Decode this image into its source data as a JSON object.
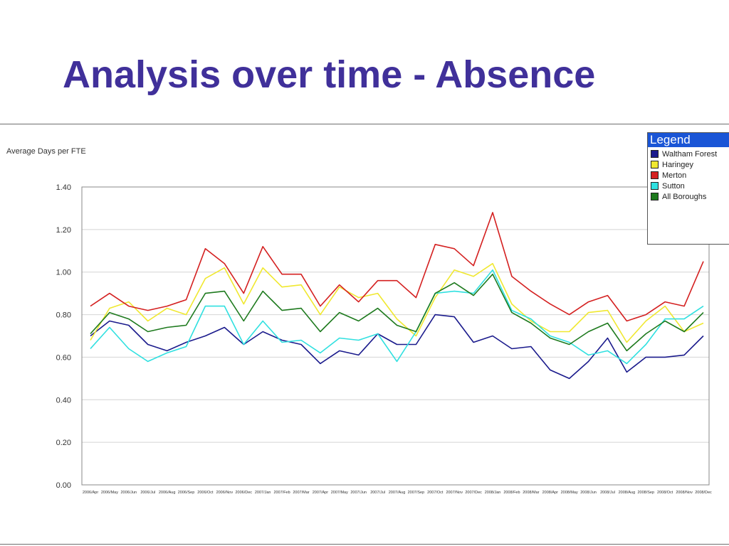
{
  "slide": {
    "title": "Analysis over time - Absence"
  },
  "legend": {
    "title": "Legend"
  },
  "chart_data": {
    "type": "line",
    "title": "",
    "ylabel": "Average Days per FTE",
    "xlabel": "",
    "ylim": [
      0,
      1.4
    ],
    "yticks": [
      "0.00",
      "0.20",
      "0.40",
      "0.60",
      "0.80",
      "1.00",
      "1.20",
      "1.40"
    ],
    "grid": true,
    "legend_placement": "top-right",
    "categories": [
      "2006/Apr",
      "2006/May",
      "2006/Jun",
      "2006/Jul",
      "2006/Aug",
      "2006/Sep",
      "2006/Oct",
      "2006/Nov",
      "2006/Dec",
      "2007/Jan",
      "2007/Feb",
      "2007/Mar",
      "2007/Apr",
      "2007/May",
      "2007/Jun",
      "2007/Jul",
      "2007/Aug",
      "2007/Sep",
      "2007/Oct",
      "2007/Nov",
      "2007/Dec",
      "2008/Jan",
      "2008/Feb",
      "2008/Mar",
      "2008/Apr",
      "2008/May",
      "2008/Jun",
      "2008/Jul",
      "2008/Aug",
      "2008/Sep",
      "2008/Oct",
      "2008/Nov",
      "2008/Dec"
    ],
    "series": [
      {
        "name": "Waltham Forest",
        "color": "#1a1a8c",
        "values": [
          0.7,
          0.77,
          0.75,
          0.66,
          0.63,
          0.67,
          0.7,
          0.74,
          0.66,
          0.72,
          0.68,
          0.66,
          0.57,
          0.63,
          0.61,
          0.71,
          0.66,
          0.66,
          0.8,
          0.79,
          0.67,
          0.7,
          0.64,
          0.65,
          0.54,
          0.5,
          0.58,
          0.69,
          0.53,
          0.6,
          0.6,
          0.61,
          0.7
        ]
      },
      {
        "name": "Haringey",
        "color": "#f0e830",
        "values": [
          0.68,
          0.83,
          0.86,
          0.77,
          0.83,
          0.8,
          0.97,
          1.02,
          0.85,
          1.02,
          0.93,
          0.94,
          0.8,
          0.93,
          0.88,
          0.9,
          0.78,
          0.7,
          0.88,
          1.01,
          0.98,
          1.04,
          0.85,
          0.77,
          0.72,
          0.72,
          0.81,
          0.82,
          0.67,
          0.77,
          0.84,
          0.72,
          0.76
        ]
      },
      {
        "name": "Merton",
        "color": "#d42020",
        "values": [
          0.84,
          0.9,
          0.84,
          0.82,
          0.84,
          0.87,
          1.11,
          1.04,
          0.9,
          1.12,
          0.99,
          0.99,
          0.84,
          0.94,
          0.86,
          0.96,
          0.96,
          0.88,
          1.13,
          1.11,
          1.03,
          1.28,
          0.98,
          0.91,
          0.85,
          0.8,
          0.86,
          0.89,
          0.77,
          0.8,
          0.86,
          0.84,
          1.05
        ]
      },
      {
        "name": "Sutton",
        "color": "#30e0e0",
        "values": [
          0.64,
          0.74,
          0.64,
          0.58,
          0.62,
          0.65,
          0.84,
          0.84,
          0.66,
          0.77,
          0.67,
          0.68,
          0.62,
          0.69,
          0.68,
          0.71,
          0.58,
          0.72,
          0.9,
          0.91,
          0.9,
          1.01,
          0.82,
          0.78,
          0.7,
          0.67,
          0.61,
          0.63,
          0.57,
          0.66,
          0.78,
          0.78,
          0.84
        ]
      },
      {
        "name": "All Boroughs",
        "color": "#1e7a1e",
        "values": [
          0.71,
          0.81,
          0.78,
          0.72,
          0.74,
          0.75,
          0.9,
          0.91,
          0.77,
          0.91,
          0.82,
          0.83,
          0.72,
          0.81,
          0.77,
          0.83,
          0.75,
          0.72,
          0.9,
          0.95,
          0.89,
          0.99,
          0.81,
          0.76,
          0.69,
          0.66,
          0.72,
          0.76,
          0.63,
          0.71,
          0.77,
          0.72,
          0.81
        ]
      }
    ]
  }
}
